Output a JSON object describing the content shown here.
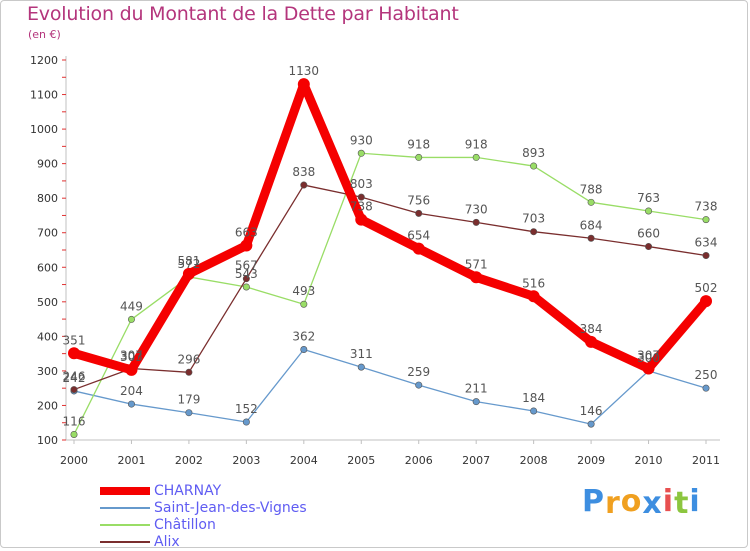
{
  "title": "Evolution du Montant de la Dette par Habitant",
  "subtitle": "(en €)",
  "brand": {
    "text": "Proxiti",
    "letter_colors": [
      "#3d8ee0",
      "#f0a020",
      "#f0a020",
      "#3d8ee0",
      "#e85050",
      "#8cc63f",
      "#3d8ee0"
    ]
  },
  "chart_data": {
    "type": "line",
    "title": "Evolution du Montant de la Dette par Habitant",
    "subtitle": "(en €)",
    "x": [
      "2000",
      "2001",
      "2002",
      "2003",
      "2004",
      "2005",
      "2006",
      "2007",
      "2008",
      "2009",
      "2010",
      "2011"
    ],
    "ylim": [
      100,
      1200
    ],
    "yticks": [
      100,
      200,
      300,
      400,
      500,
      600,
      700,
      800,
      900,
      1000,
      1100,
      1200
    ],
    "grid": false,
    "legend_position": "bottom-left",
    "series": [
      {
        "name": "CHARNAY",
        "color": "#f50000",
        "values": [
          351,
          303,
          581,
          663,
          1130,
          738,
          654,
          571,
          516,
          384,
          307,
          502
        ],
        "labels": [
          "351",
          "303",
          "581",
          "663",
          "1130",
          "738",
          "654",
          "571",
          "516",
          "384",
          "307",
          "502"
        ]
      },
      {
        "name": "Saint-Jean-des-Vignes",
        "color": "#6699cc",
        "values": [
          242,
          204,
          179,
          152,
          362,
          311,
          259,
          211,
          184,
          146,
          300,
          250
        ],
        "labels": [
          "242",
          "204",
          "179",
          "152",
          "362",
          "311",
          "259",
          "211",
          "184",
          "146",
          "300",
          "250"
        ]
      },
      {
        "name": "Châtillon",
        "color": "#99dd66",
        "values": [
          116,
          449,
          572,
          543,
          493,
          930,
          918,
          918,
          893,
          788,
          763,
          738
        ],
        "labels": [
          "116",
          "449",
          "572",
          "543",
          "493",
          "930",
          "918",
          "918",
          "893",
          "788",
          "763",
          "738"
        ]
      },
      {
        "name": "Alix",
        "color": "#7a2e2e",
        "values": [
          246,
          307,
          296,
          567,
          838,
          803,
          756,
          730,
          703,
          684,
          660,
          634
        ],
        "labels": [
          "246",
          "307",
          "296",
          "567",
          "838",
          "803",
          "756",
          "730",
          "703",
          "684",
          "660",
          "634"
        ]
      }
    ]
  }
}
